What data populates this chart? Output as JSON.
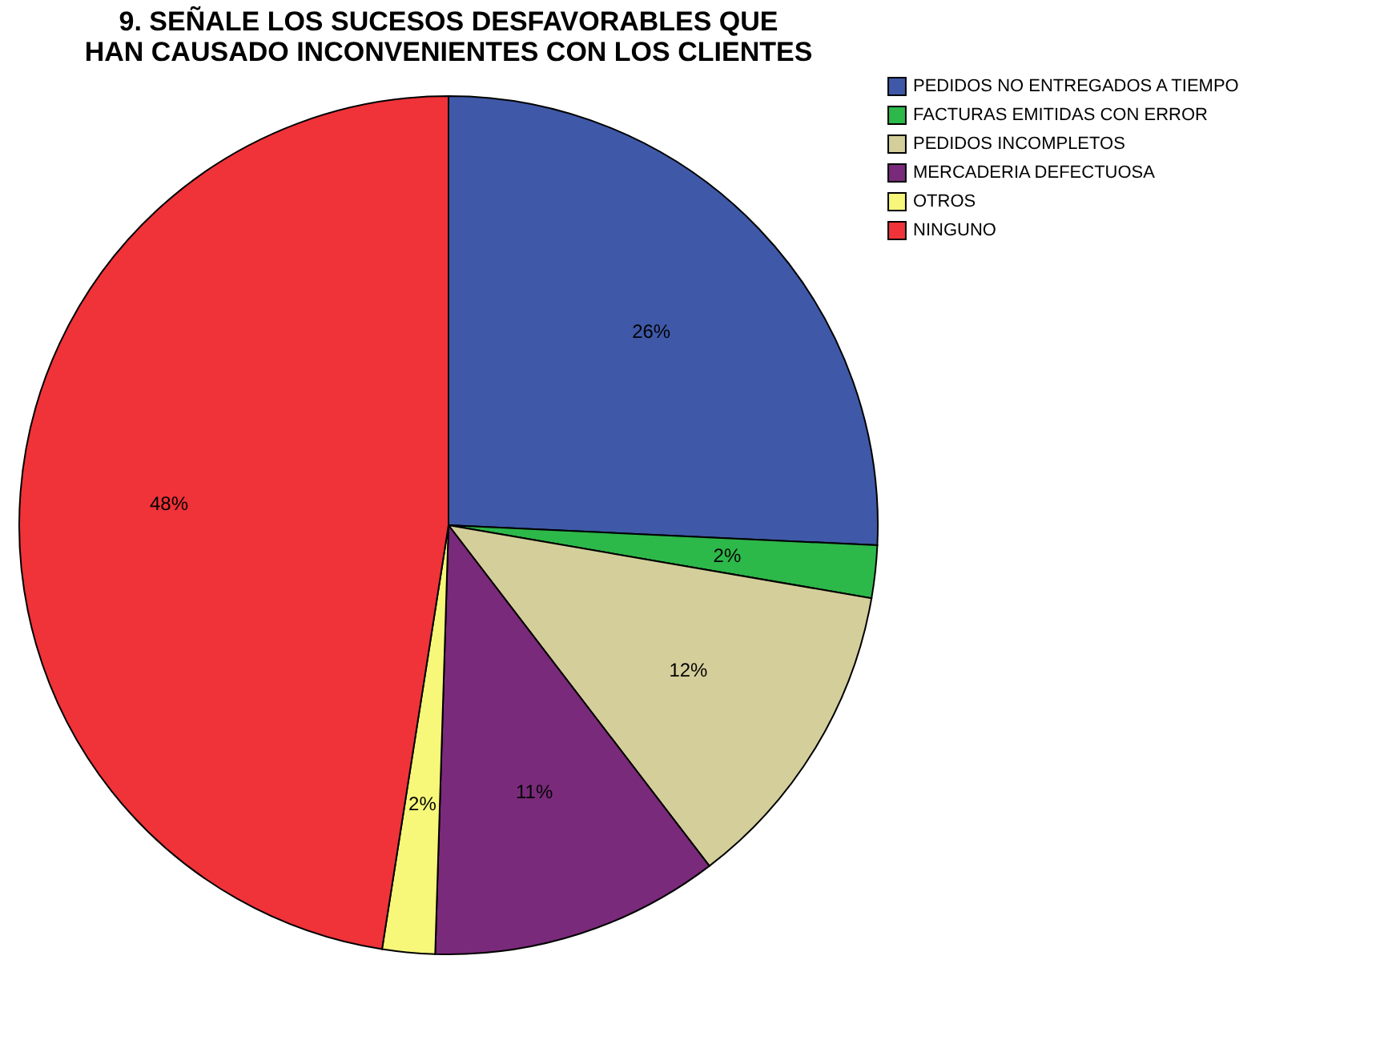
{
  "chart_data": {
    "type": "pie",
    "title": "9. SEÑALE LOS SUCESOS DESFAVORABLES QUE HAN CAUSADO INCONVENIENTES CON LOS CLIENTES",
    "categories": [
      "PEDIDOS NO ENTREGADOS A TIEMPO",
      "FACTURAS EMITIDAS CON ERROR",
      "PEDIDOS INCOMPLETOS",
      "MERCADERIA DEFECTUOSA",
      "OTROS",
      "NINGUNO"
    ],
    "values": [
      26,
      2,
      12,
      11,
      2,
      48
    ],
    "value_labels": [
      "26%",
      "2%",
      "12%",
      "11%",
      "2%",
      "48%"
    ],
    "colors": [
      "#3f59a8",
      "#2db84a",
      "#d4cf9a",
      "#7a2a7a",
      "#f7f77a",
      "#ef3339"
    ],
    "legend": "top right"
  }
}
